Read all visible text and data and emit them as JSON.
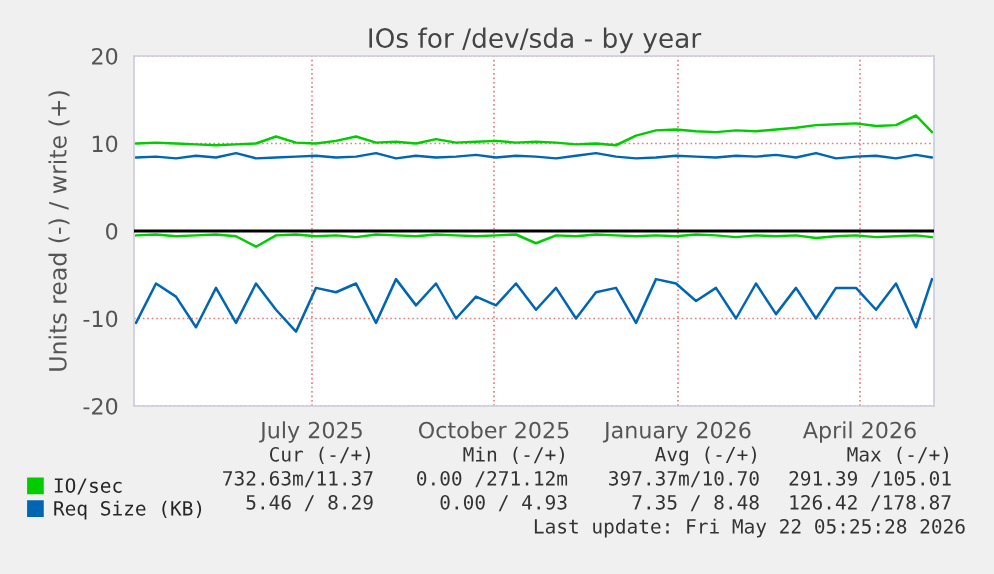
{
  "chart_data": {
    "type": "line",
    "title": "IOs for /dev/sda - by year",
    "ylabel": "Units read (-) / write (+)",
    "x": [
      "2025-04-18",
      "2025-04-28",
      "2025-05-08",
      "2025-05-18",
      "2025-05-28",
      "2025-06-07",
      "2025-06-17",
      "2025-06-27",
      "2025-07-07",
      "2025-07-17",
      "2025-07-27",
      "2025-08-06",
      "2025-08-16",
      "2025-08-26",
      "2025-09-05",
      "2025-09-15",
      "2025-09-25",
      "2025-10-05",
      "2025-10-15",
      "2025-10-25",
      "2025-11-04",
      "2025-11-14",
      "2025-11-24",
      "2025-12-04",
      "2025-12-14",
      "2025-12-24",
      "2026-01-03",
      "2026-01-13",
      "2026-01-23",
      "2026-02-02",
      "2026-02-12",
      "2026-02-22",
      "2026-03-04",
      "2026-03-14",
      "2026-03-24",
      "2026-04-03",
      "2026-04-13",
      "2026-04-23",
      "2026-05-03",
      "2026-05-13",
      "2026-05-21"
    ],
    "series": [
      {
        "name": "IO/sec",
        "color": "#00cc00",
        "values": [
          10.0,
          10.1,
          10.0,
          9.9,
          9.8,
          9.9,
          10.0,
          10.8,
          10.1,
          10.0,
          10.3,
          10.8,
          10.1,
          10.2,
          10.0,
          10.5,
          10.1,
          10.2,
          10.3,
          10.1,
          10.2,
          10.1,
          9.9,
          10.0,
          9.8,
          10.9,
          11.5,
          11.6,
          11.4,
          11.3,
          11.5,
          11.4,
          11.6,
          11.8,
          12.1,
          12.2,
          12.3,
          12.0,
          12.1,
          13.2,
          11.3
        ]
      },
      {
        "color": "#00cc00",
        "values": [
          -0.5,
          -0.4,
          -0.6,
          -0.5,
          -0.4,
          -0.6,
          -1.8,
          -0.5,
          -0.4,
          -0.6,
          -0.5,
          -0.7,
          -0.4,
          -0.5,
          -0.6,
          -0.4,
          -0.5,
          -0.6,
          -0.5,
          -0.4,
          -1.4,
          -0.5,
          -0.6,
          -0.4,
          -0.5,
          -0.6,
          -0.5,
          -0.6,
          -0.4,
          -0.5,
          -0.7,
          -0.5,
          -0.6,
          -0.5,
          -0.8,
          -0.6,
          -0.5,
          -0.7,
          -0.6,
          -0.5,
          -0.7
        ]
      },
      {
        "name": "Req Size (KB)",
        "color": "#0066b3",
        "values": [
          8.4,
          8.5,
          8.3,
          8.6,
          8.4,
          8.9,
          8.3,
          8.4,
          8.5,
          8.6,
          8.4,
          8.5,
          8.9,
          8.3,
          8.6,
          8.4,
          8.5,
          8.7,
          8.4,
          8.6,
          8.5,
          8.3,
          8.6,
          8.9,
          8.5,
          8.3,
          8.4,
          8.6,
          8.5,
          8.4,
          8.6,
          8.5,
          8.7,
          8.4,
          8.9,
          8.3,
          8.5,
          8.6,
          8.3,
          8.7,
          8.4
        ]
      },
      {
        "color": "#0066b3",
        "values": [
          -10.5,
          -6,
          -7.5,
          -11,
          -6.5,
          -10.5,
          -6,
          -9,
          -11.5,
          -6.5,
          -7,
          -6,
          -10.5,
          -5.5,
          -8.5,
          -6,
          -10,
          -7.5,
          -8.5,
          -6,
          -9,
          -6.5,
          -10,
          -7,
          -6.5,
          -10.5,
          -5.5,
          -6,
          -8,
          -6.5,
          -10,
          -6,
          -9.5,
          -6.5,
          -10,
          -6.5,
          -6.5,
          -9,
          -6,
          -11,
          -5.5
        ]
      }
    ],
    "xlim": [
      "2025-04-17",
      "2026-05-22"
    ],
    "xticks": [
      {
        "value": "2025-07-15",
        "label": "July 2025"
      },
      {
        "value": "2025-10-14",
        "label": "October 2025"
      },
      {
        "value": "2026-01-14",
        "label": "January 2026"
      },
      {
        "value": "2026-04-15",
        "label": "April 2026"
      }
    ],
    "ylim": [
      -20,
      20
    ],
    "yticks": [
      -20,
      -10,
      0,
      10,
      20
    ],
    "ref_lines": [
      {
        "axis": "y",
        "value": 0,
        "color": "#000000"
      }
    ],
    "grid": true,
    "legend": "bottom left",
    "line_style": "solid",
    "annotations": [
      "Cur (-/+)",
      "Min (-/+)",
      "Avg (-/+)",
      "Max (-/+)",
      "732.63m/11.37",
      "0.00 /271.12m",
      "397.37m/10.70",
      "291.39 /105.01",
      "5.46 / 8.29",
      "0.00 / 4.93",
      "7.35 / 8.48",
      "126.42 /178.87",
      "Last update: Fri May 22 05:25:28 2026"
    ]
  }
}
